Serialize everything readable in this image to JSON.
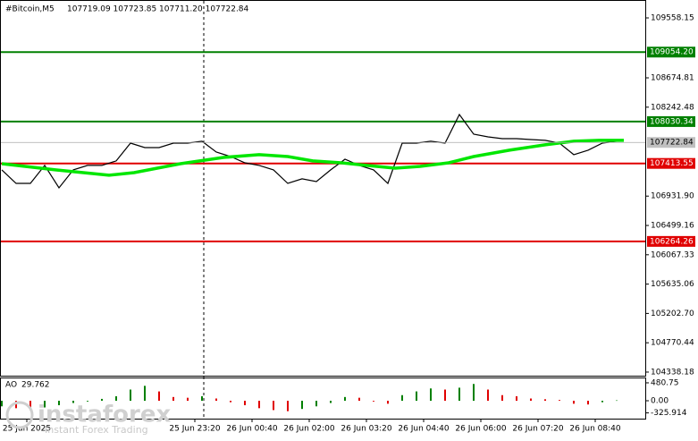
{
  "header": {
    "symbol": "#Bitcoin,M5",
    "quote": "107719.09 107723.85 107711.20 107722.84"
  },
  "watermark": {
    "brand": "instaforex",
    "slogan": "Instant Forex Trading"
  },
  "chart_data": [
    {
      "type": "line",
      "xlim": [
        -0.5,
        180
      ],
      "ylim": [
        104285,
        109822
      ],
      "yticks": [
        109558.15,
        108674.81,
        108242.48,
        {
          "value": 106931.9,
          "label": "106931.90"
        },
        106499.16,
        106067.33,
        105635.06,
        {
          "value": 105202.7,
          "label": "105202.70"
        },
        104770.44,
        104338.18
      ],
      "xticks": [
        {
          "value": 7,
          "label": "25 Jun 2025"
        },
        {
          "value": 54,
          "label": "25 Jun 23:20"
        },
        {
          "value": 70,
          "label": "26 Jun 00:40"
        },
        {
          "value": 86,
          "label": "26 Jun 02:00"
        },
        {
          "value": 102,
          "label": "26 Jun 03:20"
        },
        {
          "value": 118,
          "label": "26 Jun 04:40"
        },
        {
          "value": 134,
          "label": "26 Jun 06:00"
        },
        {
          "value": 150,
          "label": "26 Jun 07:20"
        },
        {
          "value": 166,
          "label": "26 Jun 08:40"
        }
      ],
      "levels": [
        {
          "value": 109054.2,
          "label": "109054.20",
          "color": "#008000"
        },
        {
          "value": 108030.34,
          "color": "#008000"
        },
        {
          "value": 107413.55,
          "color": "#e00000"
        },
        {
          "value": 106264.26,
          "color": "#e00000"
        }
      ],
      "current_price": 107722.84,
      "series": [
        {
          "color": "#000000",
          "x": [
            0,
            4,
            8,
            12,
            16,
            20,
            24,
            28,
            32,
            36,
            40,
            44,
            48,
            52,
            56,
            60,
            64,
            68,
            72,
            76,
            80,
            84,
            88,
            92,
            96,
            100,
            104,
            108,
            112,
            116,
            120,
            124,
            128,
            132,
            136,
            140,
            144,
            148,
            152,
            156,
            160,
            164,
            168,
            172
          ],
          "values": [
            107318,
            107120,
            107120,
            107384,
            107054,
            107318,
            107384,
            107384,
            107450,
            107713,
            107647,
            107647,
            107713,
            107713,
            107740,
            107581,
            107515,
            107423,
            107384,
            107318,
            107120,
            107186,
            107146,
            107318,
            107476,
            107384,
            107318,
            107120,
            107713,
            107713,
            107740,
            107713,
            108135,
            107845,
            107805,
            107779,
            107779,
            107766,
            107753,
            107713,
            107542,
            107608,
            107713,
            107740
          ]
        },
        {
          "color": "#00e600",
          "x": [
            0,
            15,
            30,
            37,
            50,
            62,
            72,
            80,
            87,
            95,
            102,
            110,
            117,
            125,
            132,
            142,
            152,
            160,
            167,
            174
          ],
          "values": [
            107410,
            107318,
            107239,
            107278,
            107410,
            107502,
            107542,
            107515,
            107450,
            107423,
            107384,
            107344,
            107370,
            107423,
            107515,
            107608,
            107687,
            107740,
            107753,
            107753
          ]
        }
      ]
    },
    {
      "type": "bar",
      "label": "AO",
      "last_value": 29.762,
      "xlim": [
        -0.5,
        180
      ],
      "ylim": [
        -480,
        624
      ],
      "yticks": [
        480.75,
        {
          "value": 0,
          "label": "0.00"
        },
        -325.914
      ],
      "up_color": "#008000",
      "down_color": "#e00000",
      "x": [
        0,
        4,
        8,
        12,
        16,
        20,
        24,
        28,
        32,
        36,
        40,
        44,
        48,
        52,
        56,
        60,
        64,
        68,
        72,
        76,
        80,
        84,
        88,
        92,
        96,
        100,
        104,
        108,
        112,
        116,
        120,
        124,
        128,
        132,
        136,
        140,
        144,
        148,
        152,
        156,
        160,
        164,
        168,
        172
      ],
      "values": [
        -150,
        -200,
        -250,
        -180,
        -120,
        -60,
        -20,
        50,
        120,
        300,
        400,
        250,
        100,
        80,
        120,
        60,
        -40,
        -120,
        -200,
        -250,
        -280,
        -220,
        -150,
        -60,
        100,
        80,
        -20,
        -80,
        150,
        250,
        330,
        300,
        350,
        450,
        300,
        150,
        120,
        60,
        40,
        20,
        -80,
        -100,
        -40,
        10
      ]
    }
  ]
}
